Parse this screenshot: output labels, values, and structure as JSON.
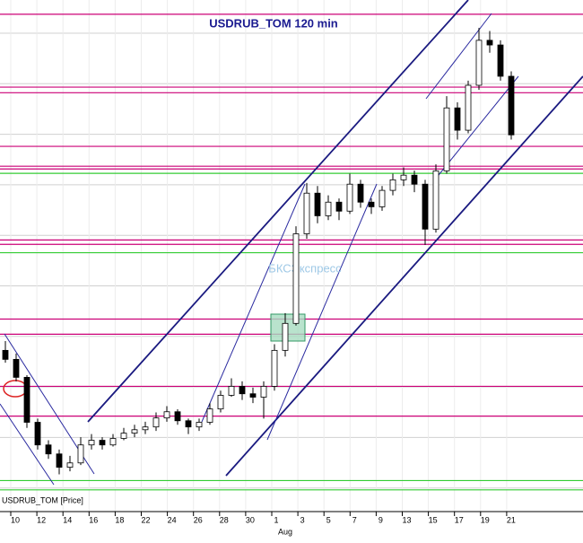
{
  "chart_data": {
    "type": "candlestick",
    "title": "USDRUB_TOM 120 min",
    "series_label": "USDRUB_TOM [Price]",
    "watermark": "БКСЭкспресс",
    "x_labels": [
      "10",
      "12",
      "14",
      "16",
      "18",
      "22",
      "24",
      "26",
      "28",
      "30",
      "1",
      "3",
      "5",
      "7",
      "9",
      "13",
      "15",
      "17",
      "19",
      "21"
    ],
    "month_label": "Aug",
    "ylim": [
      55,
      71.5
    ],
    "ohlc": [
      [
        60.2,
        60.5,
        59.8,
        59.91
      ],
      [
        59.91,
        60.1,
        59.2,
        59.33
      ],
      [
        59.33,
        59.4,
        57.7,
        57.88
      ],
      [
        57.88,
        58.0,
        57.0,
        57.15
      ],
      [
        57.15,
        57.3,
        56.7,
        56.86
      ],
      [
        56.86,
        57.0,
        56.2,
        56.43
      ],
      [
        56.43,
        56.8,
        56.3,
        56.57
      ],
      [
        56.57,
        57.4,
        56.5,
        57.15
      ],
      [
        57.15,
        57.5,
        57.0,
        57.3
      ],
      [
        57.3,
        57.4,
        57.0,
        57.15
      ],
      [
        57.15,
        57.5,
        57.1,
        57.36
      ],
      [
        57.36,
        57.7,
        57.3,
        57.53
      ],
      [
        57.53,
        57.8,
        57.4,
        57.64
      ],
      [
        57.64,
        57.9,
        57.5,
        57.73
      ],
      [
        57.73,
        58.2,
        57.6,
        58.02
      ],
      [
        58.02,
        58.4,
        57.9,
        58.22
      ],
      [
        58.22,
        58.3,
        57.8,
        57.93
      ],
      [
        57.93,
        58.0,
        57.5,
        57.73
      ],
      [
        57.73,
        58.0,
        57.6,
        57.88
      ],
      [
        57.88,
        58.5,
        57.8,
        58.31
      ],
      [
        58.31,
        58.9,
        58.2,
        58.75
      ],
      [
        58.75,
        59.3,
        58.7,
        59.04
      ],
      [
        59.04,
        59.2,
        58.6,
        58.8
      ],
      [
        58.8,
        59.0,
        58.5,
        58.69
      ],
      [
        58.69,
        59.2,
        58.0,
        59.04
      ],
      [
        59.04,
        60.4,
        58.9,
        60.2
      ],
      [
        60.2,
        61.4,
        60.0,
        61.07
      ],
      [
        61.07,
        64.2,
        61.0,
        63.96
      ],
      [
        63.96,
        65.6,
        63.8,
        65.27
      ],
      [
        65.27,
        65.5,
        64.3,
        64.54
      ],
      [
        64.54,
        65.2,
        64.4,
        64.98
      ],
      [
        64.98,
        65.1,
        64.4,
        64.69
      ],
      [
        64.69,
        65.9,
        64.6,
        65.56
      ],
      [
        65.56,
        65.7,
        64.8,
        64.98
      ],
      [
        64.98,
        65.1,
        64.6,
        64.83
      ],
      [
        64.83,
        65.5,
        64.7,
        65.36
      ],
      [
        65.36,
        65.9,
        65.2,
        65.7
      ],
      [
        65.7,
        66.1,
        65.5,
        65.85
      ],
      [
        65.85,
        66.0,
        65.3,
        65.56
      ],
      [
        65.56,
        65.7,
        63.6,
        64.11
      ],
      [
        64.11,
        66.2,
        64.0,
        65.99
      ],
      [
        65.99,
        68.4,
        65.9,
        68.02
      ],
      [
        68.02,
        68.2,
        67.0,
        67.3
      ],
      [
        67.3,
        68.9,
        67.2,
        68.75
      ],
      [
        68.75,
        70.6,
        68.6,
        70.2
      ],
      [
        70.2,
        70.5,
        69.8,
        70.05
      ],
      [
        70.05,
        70.2,
        68.9,
        69.04
      ],
      [
        69.04,
        69.2,
        67.0,
        67.15
      ]
    ],
    "levels": [
      {
        "value": 71.04,
        "color": "#cc0077"
      },
      {
        "value": 68.69,
        "color": "#cc0077"
      },
      {
        "value": 68.51,
        "color": "#cc0077"
      },
      {
        "value": 66.78,
        "color": "#cc0077"
      },
      {
        "value": 66.14,
        "color": "#cc0077"
      },
      {
        "value": 66.05,
        "color": "#cc0077"
      },
      {
        "value": 65.91,
        "color": "#33cc33"
      },
      {
        "value": 63.76,
        "color": "#cc0077"
      },
      {
        "value": 63.62,
        "color": "#cc0077"
      },
      {
        "value": 63.35,
        "color": "#33cc33"
      },
      {
        "value": 61.21,
        "color": "#cc0077"
      },
      {
        "value": 60.72,
        "color": "#cc0077"
      },
      {
        "value": 59.04,
        "color": "#cc0077"
      },
      {
        "value": 58.08,
        "color": "#cc0077"
      },
      {
        "value": 56.0,
        "color": "#33cc33"
      },
      {
        "value": 55.7,
        "color": "#33cc33"
      }
    ]
  }
}
